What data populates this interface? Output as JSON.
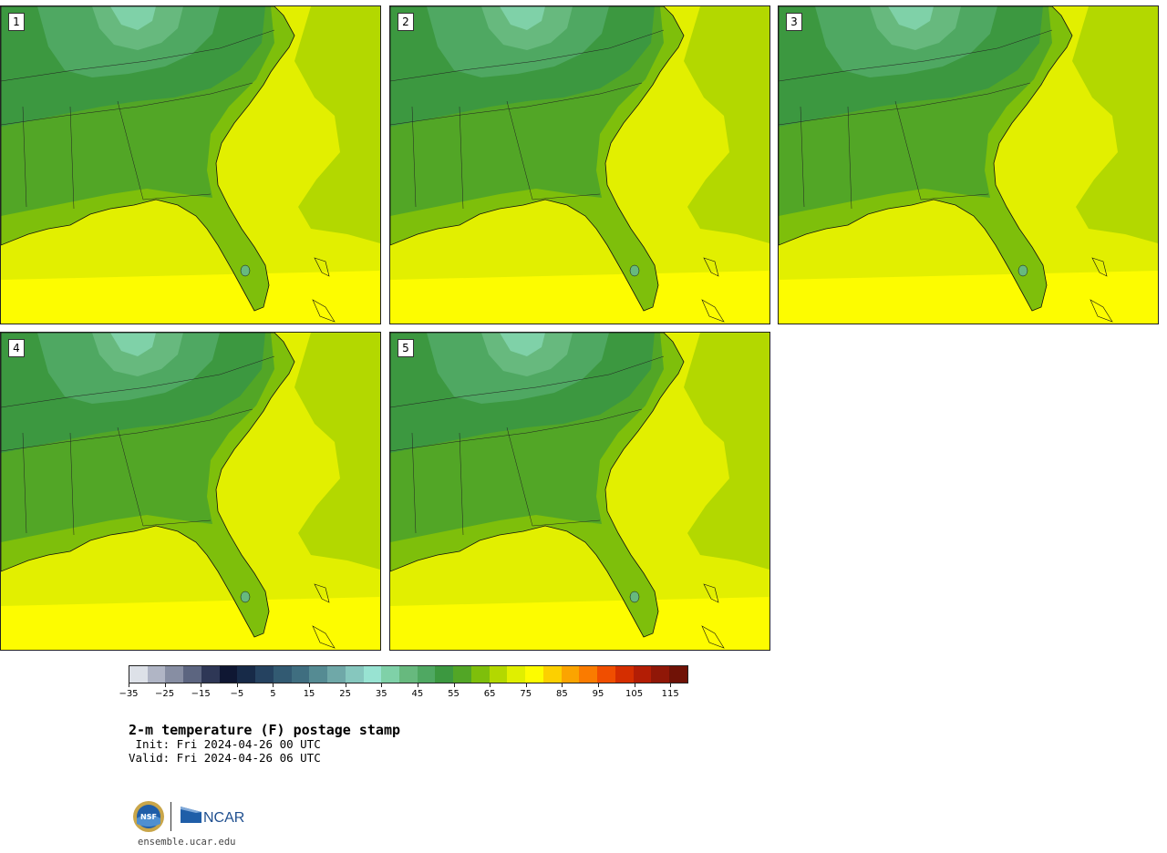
{
  "panels": [
    {
      "label": "1"
    },
    {
      "label": "2"
    },
    {
      "label": "3"
    },
    {
      "label": "4"
    },
    {
      "label": "5"
    }
  ],
  "colorbar": {
    "colors": [
      "#dde1e8",
      "#b0b5c5",
      "#878ea3",
      "#5c6580",
      "#2e3756",
      "#0f1733",
      "#172a48",
      "#254260",
      "#325a72",
      "#3f6e80",
      "#558b93",
      "#6fa8a8",
      "#86c7be",
      "#98e3d2",
      "#7fd1a8",
      "#67b97e",
      "#4fa862",
      "#3c9840",
      "#52a626",
      "#7ebf0b",
      "#b3d800",
      "#e0ef00",
      "#fdfc00",
      "#fcd000",
      "#fba400",
      "#fa7b00",
      "#f04e00",
      "#d52e00",
      "#b31d05",
      "#901707",
      "#701206"
    ],
    "tick_labels": [
      "−35",
      "−25",
      "−15",
      "−5",
      "5",
      "15",
      "25",
      "35",
      "45",
      "55",
      "65",
      "75",
      "85",
      "95",
      "105",
      "115"
    ]
  },
  "title": "2-m temperature (F) postage stamp",
  "init_line": " Init: Fri 2024-04-26 00 UTC",
  "valid_line": "Valid: Fri 2024-04-26 06 UTC",
  "logos": {
    "nsf_text": "NSF",
    "ncar_text": "NCAR"
  },
  "site_url": "ensemble.ucar.edu"
}
